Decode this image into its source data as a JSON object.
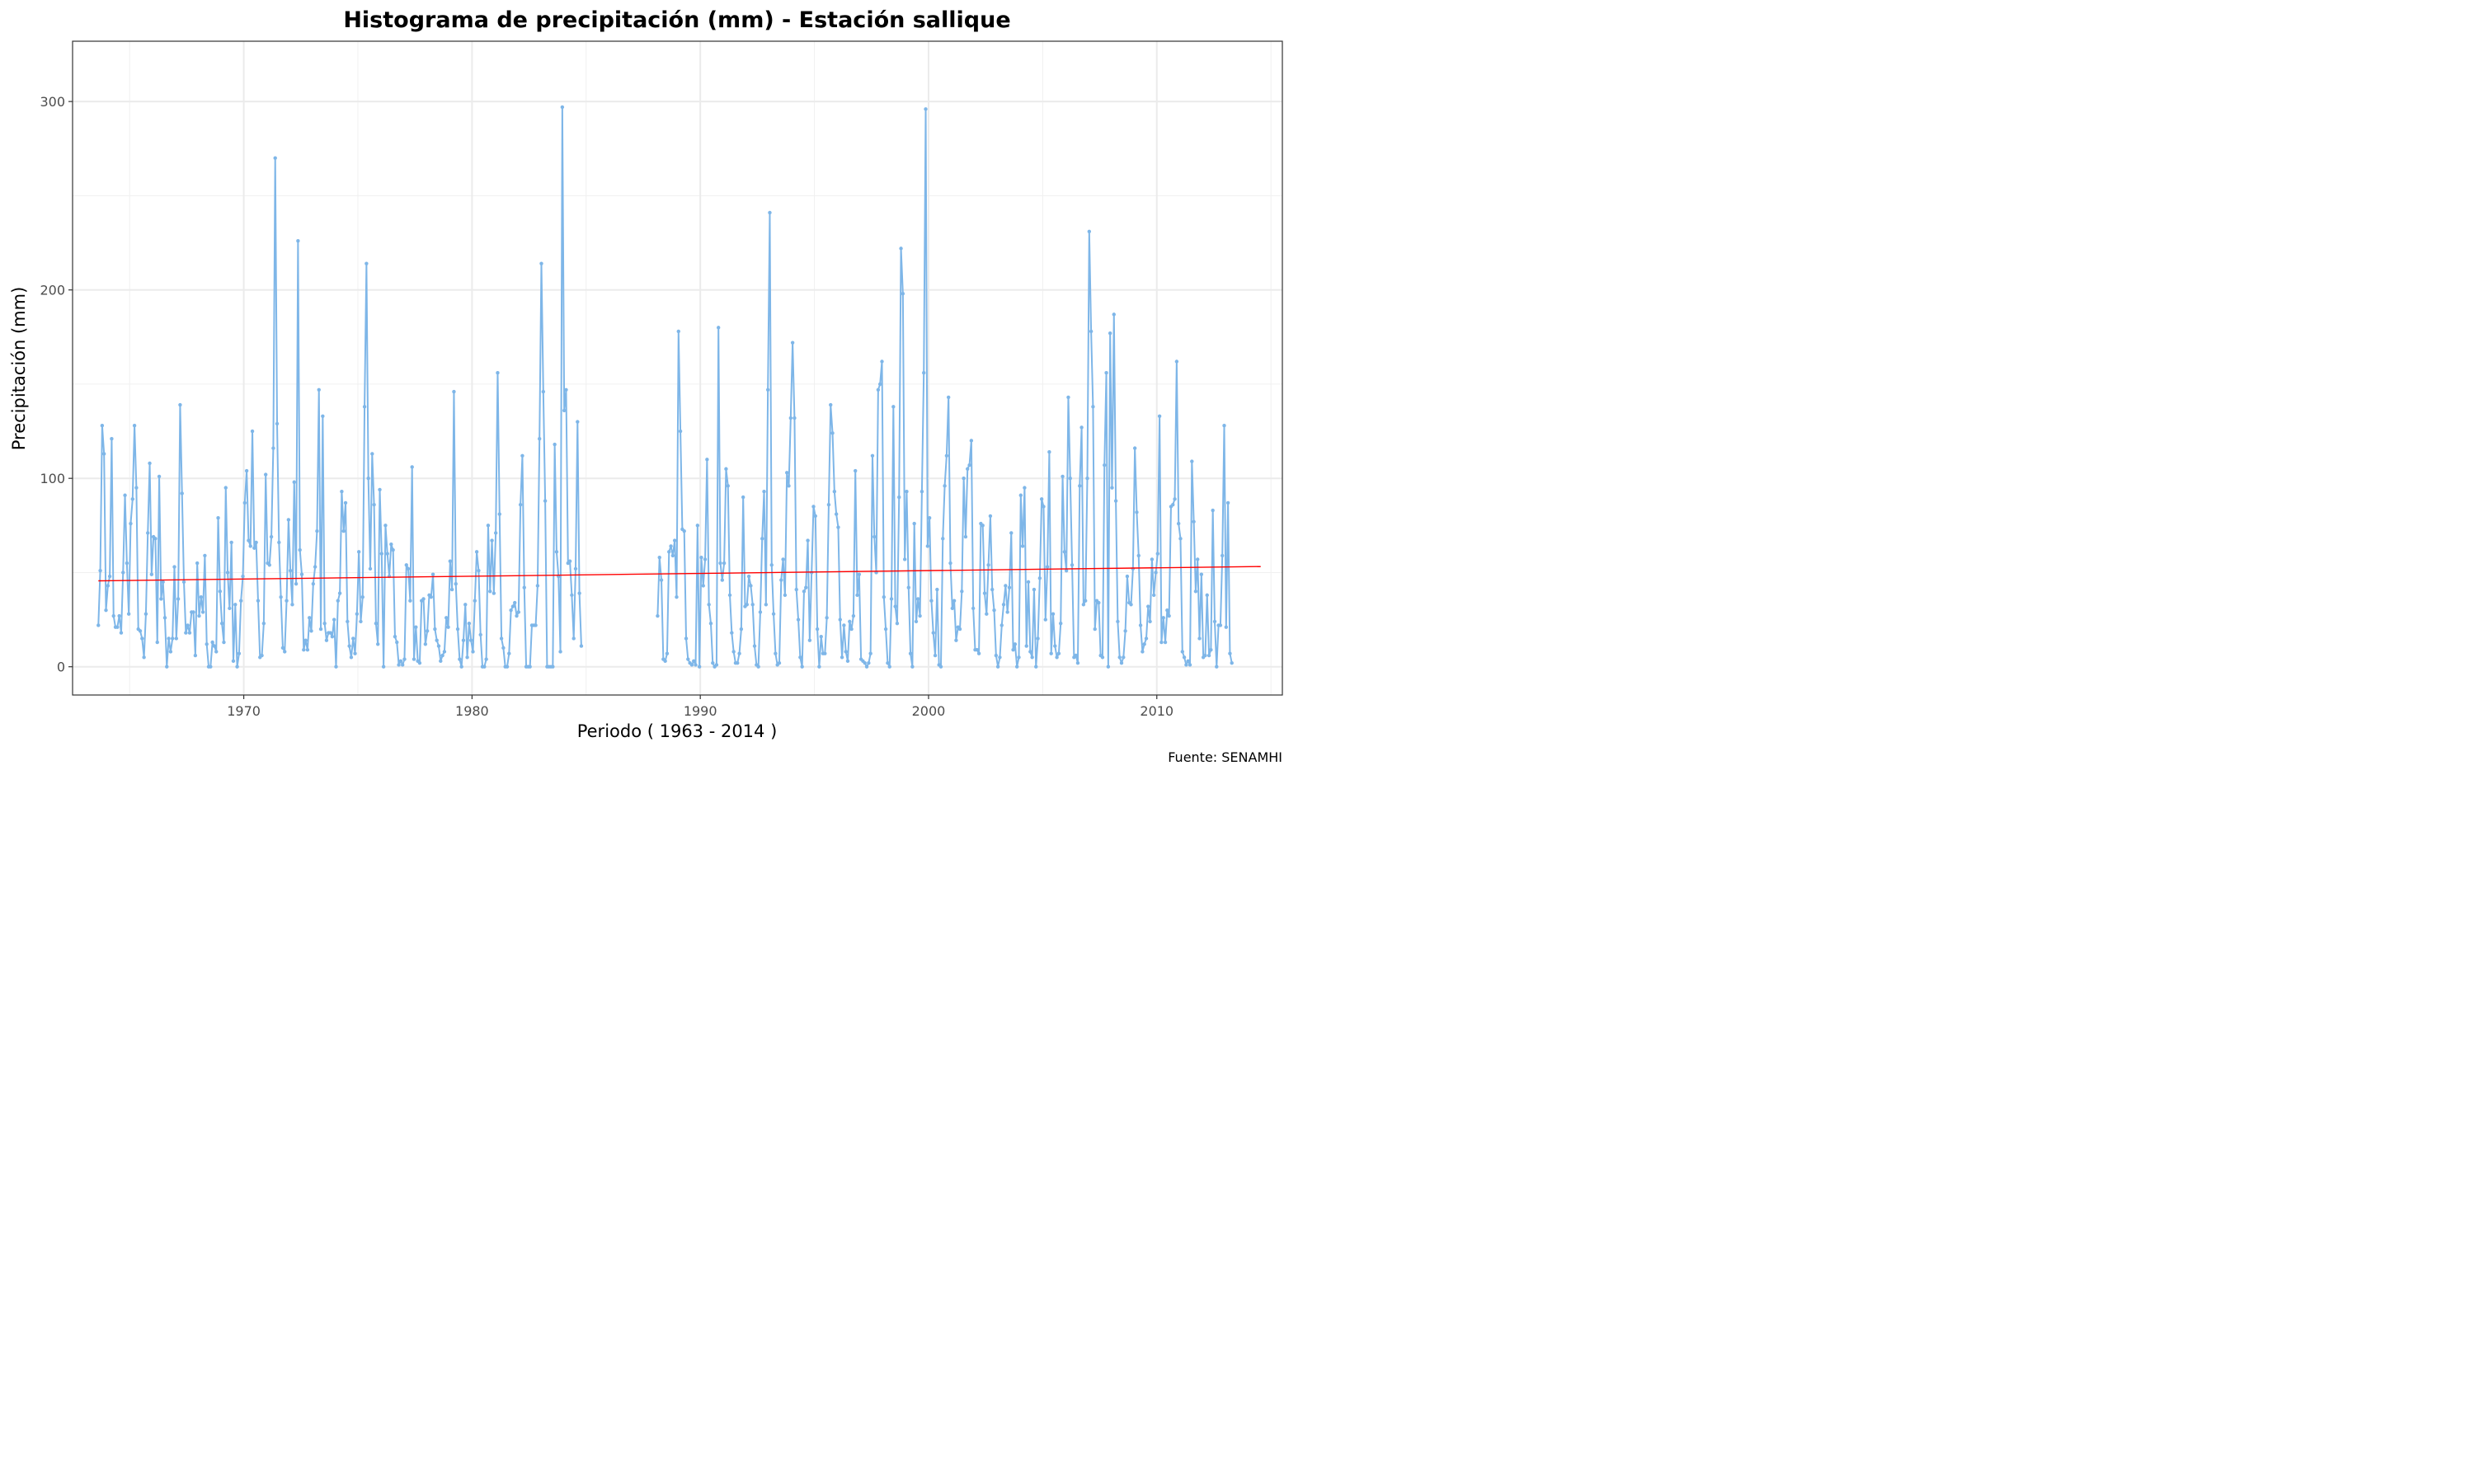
{
  "chart_data": {
    "type": "line",
    "title": "Histograma de precipitación (mm) - Estación sallique",
    "xlabel": "Periodo ( 1963 - 2014 )",
    "ylabel": "Precipitación (mm)",
    "caption": "Fuente: SENAMHI",
    "xlim": [
      1962.5,
      2015.5
    ],
    "ylim": [
      -15,
      332
    ],
    "x_ticks": [
      1970,
      1980,
      1990,
      2000,
      2010
    ],
    "x_tick_labels": [
      "1970",
      "1980",
      "1990",
      "2000",
      "2010"
    ],
    "y_ticks": [
      0,
      100,
      200,
      300
    ],
    "y_tick_labels": [
      "0",
      "100",
      "200",
      "300"
    ],
    "grid": true,
    "legend": "none",
    "series": [
      {
        "color": "#7eb6e8",
        "segments": [
          {
            "start_year": 1963.63,
            "step_years": 0.0833,
            "values": [
              22,
              51,
              128,
              113,
              30,
              43,
              48,
              121,
              27,
              21,
              21,
              27,
              18,
              50,
              91,
              55,
              28,
              76,
              89,
              128,
              95,
              20,
              19,
              15,
              5,
              28,
              71,
              108,
              49,
              69,
              68,
              13,
              101,
              36,
              45,
              26,
              0,
              15,
              8,
              15,
              53,
              15,
              36,
              139,
              92,
              45,
              18,
              22,
              18,
              29,
              29,
              6,
              55,
              27,
              37,
              29,
              59,
              12,
              0,
              0,
              13,
              11,
              8,
              79,
              40,
              23,
              13,
              95,
              50,
              31,
              66,
              3,
              33,
              0,
              7,
              35,
              48,
              87,
              104,
              67,
              64,
              125,
              63,
              66,
              35,
              5,
              6,
              23,
              102,
              55,
              54,
              69,
              116,
              270,
              129,
              66,
              37,
              10,
              8,
              35,
              78,
              51,
              33,
              98,
              44,
              226,
              62,
              49,
              9,
              14,
              9,
              26,
              19,
              44,
              53,
              72,
              147,
              20,
              133,
              23,
              14,
              18,
              18,
              16,
              25,
              0,
              35,
              39,
              93,
              72,
              87,
              24,
              11,
              5,
              15,
              7,
              28,
              61,
              24,
              37,
              138,
              214,
              100,
              52,
              113,
              86,
              23,
              12,
              94,
              60,
              0,
              75,
              60,
              48,
              65,
              62,
              16,
              13,
              1,
              3,
              1,
              4,
              54,
              52,
              35,
              106,
              4,
              21,
              3,
              2,
              35,
              36,
              12,
              19,
              38,
              37,
              49,
              20,
              14,
              11,
              3,
              6,
              8,
              26,
              21,
              56,
              41,
              146,
              44,
              20,
              4,
              0,
              14,
              33,
              5,
              23,
              14,
              8,
              35,
              61,
              51,
              17,
              0,
              0,
              4,
              75,
              40,
              67,
              39,
              71,
              156,
              81,
              15,
              10,
              0,
              0,
              7,
              30,
              32,
              34,
              27,
              29,
              86,
              112,
              42,
              0,
              0,
              0,
              22,
              22,
              22,
              43,
              121,
              214,
              146,
              88,
              0,
              0,
              0,
              0,
              118,
              61,
              48,
              8,
              297,
              136,
              147,
              55,
              56,
              38,
              15,
              52,
              130,
              39,
              11
            ]
          },
          {
            "start_year": 1988.13,
            "step_years": 0.0833,
            "values": [
              27,
              58,
              46,
              4,
              3,
              7,
              61,
              64,
              59,
              67,
              37,
              178,
              125,
              73,
              72,
              15,
              4,
              2,
              1,
              3,
              1,
              75,
              0,
              58,
              43,
              57,
              110,
              33,
              23,
              2,
              0,
              1,
              180,
              55,
              46,
              55,
              105,
              96,
              38,
              18,
              8,
              2,
              2,
              7,
              20,
              90,
              32,
              33,
              48,
              43,
              33,
              11,
              1,
              0,
              29,
              68,
              93,
              33,
              147,
              241,
              54,
              28,
              7,
              1,
              2,
              46,
              57,
              38,
              103,
              96,
              132,
              172,
              132,
              41,
              25,
              5,
              0,
              40,
              42,
              67,
              14,
              50,
              85,
              80,
              20,
              0,
              16,
              7,
              7,
              26,
              86,
              139,
              124,
              93,
              81,
              74,
              25,
              5,
              22,
              8,
              3,
              24,
              20,
              27,
              104,
              38,
              49,
              4,
              3,
              2,
              0,
              2,
              7,
              112,
              69,
              50,
              147,
              150,
              162,
              37,
              20,
              2,
              0,
              36,
              138,
              32,
              23,
              90,
              222,
              198,
              57,
              93,
              42,
              7,
              0,
              76,
              24,
              36,
              27,
              93,
              156,
              296,
              64,
              79,
              35,
              18,
              6,
              41,
              1,
              0,
              68,
              96,
              112,
              143,
              55,
              31,
              35,
              14,
              21,
              20,
              40,
              100,
              69,
              105,
              107,
              120,
              31,
              9,
              9,
              7,
              76,
              75,
              39,
              28,
              54,
              80,
              41,
              30,
              6,
              0,
              5,
              22,
              33,
              43,
              29,
              42,
              71,
              9,
              12,
              0,
              5,
              91,
              64,
              95,
              11,
              45,
              8,
              5,
              41,
              0,
              15,
              47,
              89,
              85,
              25,
              53,
              114,
              7,
              28,
              11,
              5,
              7,
              23,
              101,
              61,
              51,
              143,
              100,
              54,
              5,
              6,
              2,
              96,
              127,
              33,
              35,
              100,
              231,
              178,
              138,
              20,
              35,
              34,
              6,
              5,
              107,
              156,
              0,
              177,
              95,
              187,
              88,
              24,
              5,
              2,
              5,
              19,
              48,
              34,
              33,
              52,
              116,
              82,
              59,
              22,
              8,
              12,
              15,
              32,
              24,
              57,
              38,
              50,
              60,
              133,
              13,
              26,
              13,
              30,
              27,
              85,
              86,
              89,
              162,
              76,
              68,
              8,
              5,
              1,
              3,
              1,
              109,
              77,
              40,
              57,
              15,
              49,
              5,
              6,
              38,
              6,
              9,
              83,
              24,
              0,
              22,
              22,
              59,
              128,
              21,
              87,
              7,
              2
            ]
          }
        ]
      }
    ],
    "trend": {
      "color": "#ff0000",
      "x": [
        1963.63,
        2014.55
      ],
      "y": [
        45.6,
        53.2
      ]
    }
  }
}
